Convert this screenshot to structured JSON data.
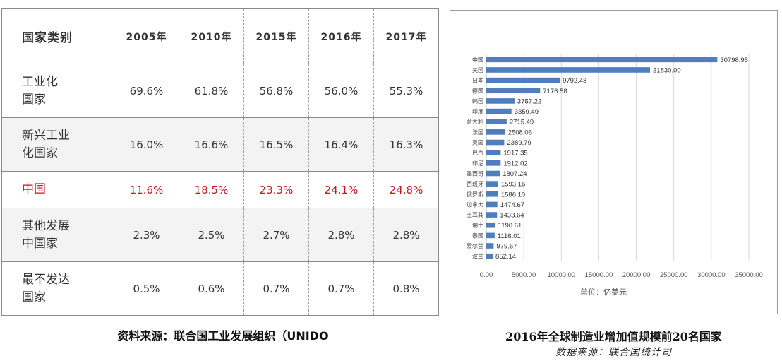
{
  "table": {
    "headers": [
      "国家类别",
      "2005年",
      "2010年",
      "2015年",
      "2016年",
      "2017年"
    ],
    "rows": [
      {
        "category": "工业化国家",
        "values": [
          "69.6%",
          "61.8%",
          "56.8%",
          "56.0%",
          "55.3%"
        ]
      },
      {
        "category": "新兴工业化国家",
        "values": [
          "16.0%",
          "16.6%",
          "16.5%",
          "16.4%",
          "16.3%"
        ]
      },
      {
        "category": "中国",
        "values": [
          "11.6%",
          "18.5%",
          "23.3%",
          "24.1%",
          "24.8%"
        ]
      },
      {
        "category": "其他发展中国家",
        "values": [
          "2.3%",
          "2.5%",
          "2.7%",
          "2.8%",
          "2.8%"
        ]
      },
      {
        "category": "最不发达国家",
        "values": [
          "0.5%",
          "0.6%",
          "0.7%",
          "0.7%",
          "0.8%"
        ]
      }
    ],
    "caption": "资料来源：联合国工业发展组织（UNIDO",
    "highlight_color": "#d0121b"
  },
  "chart_data": {
    "type": "bar",
    "orientation": "horizontal",
    "title": "2016年全球制造业增加值规模前20名国家",
    "source": "数据来源：联合国统计司",
    "xlabel": "单位：亿美元",
    "ylabel": "",
    "xlim": [
      0,
      35000
    ],
    "xticks": [
      "0.00",
      "5000.00",
      "10000.00",
      "15000.00",
      "20000.00",
      "25000.00",
      "30000.00",
      "35000.00"
    ],
    "grid": "vertical",
    "bar_color": "#4f7dbd",
    "categories": [
      "中国",
      "美国",
      "日本",
      "德国",
      "韩国",
      "印度",
      "意大利",
      "法国",
      "英国",
      "巴西",
      "印尼",
      "墨西哥",
      "西班牙",
      "俄罗斯",
      "加拿大",
      "土耳其",
      "瑞士",
      "泰国",
      "爱尔兰",
      "波兰"
    ],
    "values": [
      30798.95,
      21830.0,
      9792.48,
      7176.58,
      3757.22,
      3359.49,
      2715.49,
      2508.06,
      2389.79,
      1917.35,
      1912.02,
      1807.24,
      1593.16,
      1586.1,
      1474.67,
      1433.64,
      1190.61,
      1116.01,
      979.67,
      852.14
    ],
    "value_labels": [
      "30798.95",
      "21830.00",
      "9792.48",
      "7176.58",
      "3757.22",
      "3359.49",
      "2715.49",
      "2508.06",
      "2389.79",
      "1917.35",
      "1912.02",
      "1807.24",
      "1593.16",
      "1586.10",
      "1474.67",
      "1433.64",
      "1190.61",
      "1116.01",
      "979.67",
      "852.14"
    ]
  }
}
